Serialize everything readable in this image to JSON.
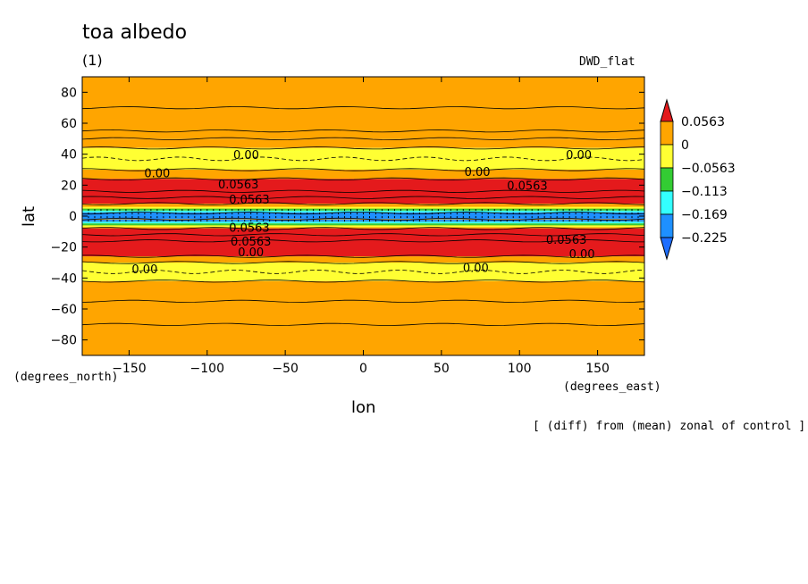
{
  "title": "toa albedo",
  "panel_label": "(1)",
  "dataset": "DWD_flat",
  "footnote": "[ (diff) from (mean) zonal of control ]",
  "chart_data": {
    "type": "heatmap",
    "title": "toa albedo",
    "xlabel": "lon",
    "ylabel": "lat",
    "x_units": "(degrees_east)",
    "y_units": "(degrees_north)",
    "xlim": [
      -180,
      180
    ],
    "ylim": [
      -90,
      90
    ],
    "x_ticks": [
      -150,
      -100,
      -50,
      0,
      50,
      100,
      150
    ],
    "y_ticks": [
      80,
      60,
      40,
      20,
      0,
      -20,
      -40,
      -60,
      -80
    ],
    "colorbar": {
      "levels": [
        "0.0563",
        "0",
        "-0.0563",
        "-0.113",
        "-0.169",
        "-0.225"
      ],
      "colors": [
        "#e41a1c",
        "#ffa500",
        "#ffff33",
        "#33cc33",
        "#33ffff",
        "#1e90ff",
        "#1e6eff"
      ]
    },
    "bands": [
      {
        "lat": [
          50,
          90
        ],
        "class": "0 to 0.0563"
      },
      {
        "lat": [
          44,
          50
        ],
        "class": "0 to 0.0563"
      },
      {
        "lat": [
          30,
          44
        ],
        "class": "-0.0563 to 0"
      },
      {
        "lat": [
          24,
          30
        ],
        "class": "0 to 0.0563"
      },
      {
        "lat": [
          8,
          24
        ],
        "class": "> 0.0563"
      },
      {
        "lat": [
          2,
          8
        ],
        "class": "mixed"
      },
      {
        "lat": [
          -2,
          2
        ],
        "class": "-0.225 to -0.169"
      },
      {
        "lat": [
          -8,
          -2
        ],
        "class": "mixed"
      },
      {
        "lat": [
          -26,
          -8
        ],
        "class": "> 0.0563"
      },
      {
        "lat": [
          -30,
          -26
        ],
        "class": "0 to 0.0563"
      },
      {
        "lat": [
          -42,
          -30
        ],
        "class": "-0.0563 to 0"
      },
      {
        "lat": [
          -90,
          -42
        ],
        "class": "0 to 0.0563"
      }
    ],
    "contour_labels": [
      {
        "text": "0.00",
        "lon": -75,
        "lat": 37
      },
      {
        "text": "0.00",
        "lon": 138,
        "lat": 37
      },
      {
        "text": "0.00",
        "lon": -132,
        "lat": 25
      },
      {
        "text": "0.00",
        "lon": 73,
        "lat": 26
      },
      {
        "text": "0.0563",
        "lon": -80,
        "lat": 18
      },
      {
        "text": "0.0563",
        "lon": 105,
        "lat": 17
      },
      {
        "text": "0.0563",
        "lon": -73,
        "lat": 8
      },
      {
        "text": "0.0563",
        "lon": -73,
        "lat": -10
      },
      {
        "text": "0.0563",
        "lon": -72,
        "lat": -19
      },
      {
        "text": "0.0563",
        "lon": 130,
        "lat": -18
      },
      {
        "text": "0.00",
        "lon": -72,
        "lat": -26
      },
      {
        "text": "0.00",
        "lon": 140,
        "lat": -27
      },
      {
        "text": "0.00",
        "lon": -140,
        "lat": -37
      },
      {
        "text": "0.00",
        "lon": 72,
        "lat": -36
      }
    ]
  }
}
